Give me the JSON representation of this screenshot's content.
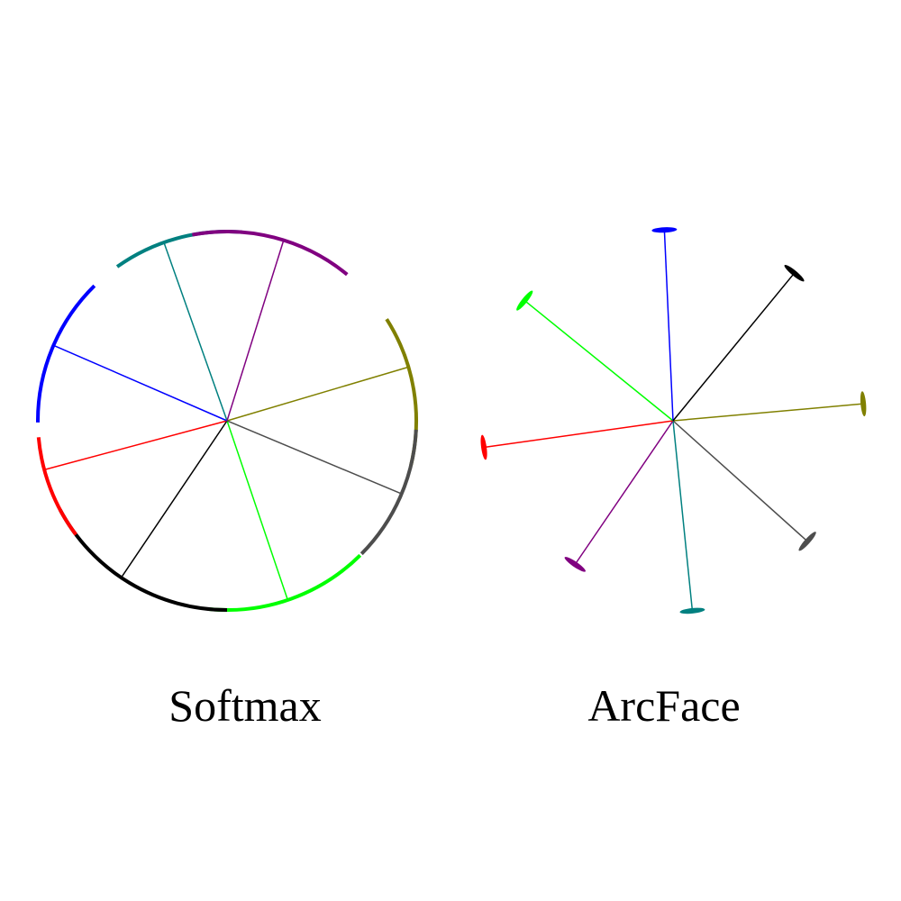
{
  "panels": [
    {
      "label": "Softmax",
      "style": "ring",
      "classes": [
        {
          "color": "#ffffff",
          "angle_deg": 16.5,
          "spread": [
            -30,
            16
          ],
          "line_color": "#808000",
          "ring_color": "#808000"
        },
        {
          "color": "#4d4d4d",
          "angle_deg": -22.7,
          "spread": [
            -22,
            20
          ],
          "line_color": "#4d4d4d",
          "ring_color": "#4d4d4d"
        },
        {
          "color": "#00ff00",
          "angle_deg": -71.3,
          "spread": [
            -24,
            26
          ],
          "line_color": "#00ff00",
          "ring_color": "#00ff00"
        },
        {
          "color": "#000000",
          "angle_deg": -124.0,
          "spread": [
            -28,
            34
          ],
          "line_color": "#000000",
          "ring_color": "#000000"
        },
        {
          "color": "#ff0000",
          "angle_deg": -165.0,
          "spread": [
            -10,
            22
          ],
          "line_color": "#ff0000",
          "ring_color": "#ff0000"
        },
        {
          "color": "#0000ff",
          "angle_deg": 156.5,
          "spread": [
            -22,
            24
          ],
          "line_color": "#0000ff",
          "ring_color": "#0000ff"
        },
        {
          "color": "#008080",
          "angle_deg": 109.5,
          "spread": [
            -24,
            16
          ],
          "line_color": "#008080",
          "ring_color": "#008080"
        },
        {
          "color": "#800080",
          "angle_deg": 72.6,
          "spread": [
            -22,
            28
          ],
          "line_color": "#800080",
          "ring_color": "#800080"
        }
      ]
    },
    {
      "label": "ArcFace",
      "style": "spokes",
      "classes": [
        {
          "angle_deg": 5.1,
          "length": 1.0,
          "color": "#808000"
        },
        {
          "angle_deg": -41.9,
          "length": 0.945,
          "color": "#4d4d4d"
        },
        {
          "angle_deg": -84.2,
          "length": 1.0,
          "color": "#008080"
        },
        {
          "angle_deg": -124.3,
          "length": 0.91,
          "color": "#800080"
        },
        {
          "angle_deg": -172.0,
          "length": 1.0,
          "color": "#ff0000"
        },
        {
          "angle_deg": 141.0,
          "length": 1.0,
          "color": "#00ff00"
        },
        {
          "angle_deg": 92.6,
          "length": 1.0,
          "color": "#0000ff"
        },
        {
          "angle_deg": 50.6,
          "length": 1.0,
          "color": "#000000"
        }
      ]
    }
  ]
}
